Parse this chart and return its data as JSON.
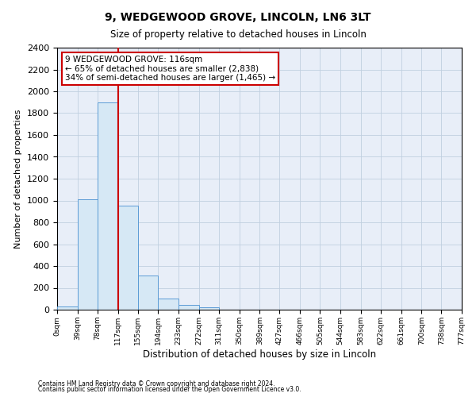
{
  "title_line1": "9, WEDGEWOOD GROVE, LINCOLN, LN6 3LT",
  "title_line2": "Size of property relative to detached houses in Lincoln",
  "xlabel": "Distribution of detached houses by size in Lincoln",
  "ylabel": "Number of detached properties",
  "footnote1": "Contains HM Land Registry data © Crown copyright and database right 2024.",
  "footnote2": "Contains public sector information licensed under the Open Government Licence v3.0.",
  "annotation_line1": "9 WEDGEWOOD GROVE: 116sqm",
  "annotation_line2": "← 65% of detached houses are smaller (2,838)",
  "annotation_line3": "34% of semi-detached houses are larger (1,465) →",
  "property_line_x": 117,
  "bin_edges": [
    0,
    39,
    78,
    117,
    155,
    194,
    233,
    272,
    311,
    350,
    389,
    427,
    466,
    505,
    544,
    583,
    622,
    661,
    700,
    738,
    777
  ],
  "bar_heights": [
    30,
    1010,
    1900,
    950,
    310,
    100,
    45,
    25,
    0,
    0,
    0,
    0,
    0,
    0,
    0,
    0,
    0,
    0,
    0,
    0
  ],
  "bar_color": "#d6e8f5",
  "bar_edge_color": "#5b9bd5",
  "red_line_color": "#cc0000",
  "grid_color": "#c0cfe0",
  "ylim": [
    0,
    2400
  ],
  "yticks": [
    0,
    200,
    400,
    600,
    800,
    1000,
    1200,
    1400,
    1600,
    1800,
    2000,
    2200,
    2400
  ],
  "annotation_box_edge_color": "#cc0000",
  "background_color": "#e8eef8"
}
